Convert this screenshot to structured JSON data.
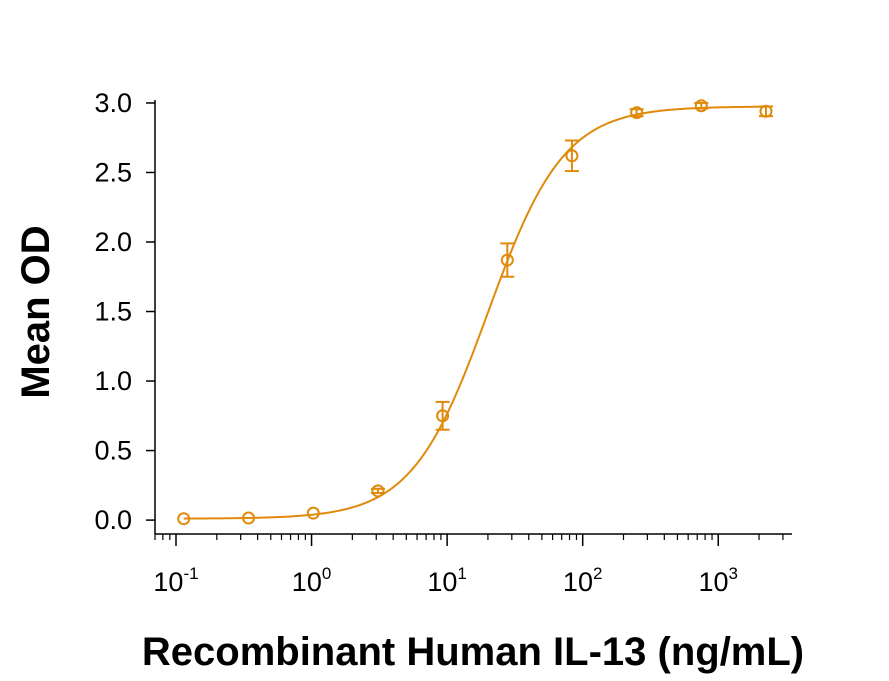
{
  "chart_data": {
    "type": "scatter",
    "title": "",
    "xlabel": "Recombinant Human IL-13 (ng/mL)",
    "ylabel": "Mean OD",
    "xscale": "log",
    "xlim": [
      0.07,
      3500
    ],
    "ylim": [
      -0.1,
      3.05
    ],
    "grid": false,
    "color": "#E08A0B",
    "x_ticks": [
      {
        "base": "10",
        "exp": "-1",
        "value": 0.1
      },
      {
        "base": "10",
        "exp": "0",
        "value": 1
      },
      {
        "base": "10",
        "exp": "1",
        "value": 10
      },
      {
        "base": "10",
        "exp": "2",
        "value": 100
      },
      {
        "base": "10",
        "exp": "3",
        "value": 1000
      }
    ],
    "y_ticks": [
      {
        "label": "0.0",
        "value": 0.0
      },
      {
        "label": "0.5",
        "value": 0.5
      },
      {
        "label": "1.0",
        "value": 1.0
      },
      {
        "label": "1.5",
        "value": 1.5
      },
      {
        "label": "2.0",
        "value": 2.0
      },
      {
        "label": "2.5",
        "value": 2.5
      },
      {
        "label": "3.0",
        "value": 3.0
      }
    ],
    "series": [
      {
        "points": [
          {
            "x": 0.114,
            "y": 0.01,
            "err": 0.0
          },
          {
            "x": 0.343,
            "y": 0.015,
            "err": 0.0
          },
          {
            "x": 1.03,
            "y": 0.05,
            "err": 0.0
          },
          {
            "x": 3.09,
            "y": 0.21,
            "err": 0.015
          },
          {
            "x": 9.26,
            "y": 0.75,
            "err": 0.1
          },
          {
            "x": 27.8,
            "y": 1.87,
            "err": 0.12
          },
          {
            "x": 83.3,
            "y": 2.62,
            "err": 0.11
          },
          {
            "x": 250,
            "y": 2.93,
            "err": 0.025
          },
          {
            "x": 750,
            "y": 2.98,
            "err": 0.02
          },
          {
            "x": 2250,
            "y": 2.94,
            "err": 0.035
          }
        ],
        "fit": {
          "model": "4PL",
          "bottom": 0.01,
          "top": 2.975,
          "ec50": 20,
          "hill": 1.55
        }
      }
    ]
  }
}
